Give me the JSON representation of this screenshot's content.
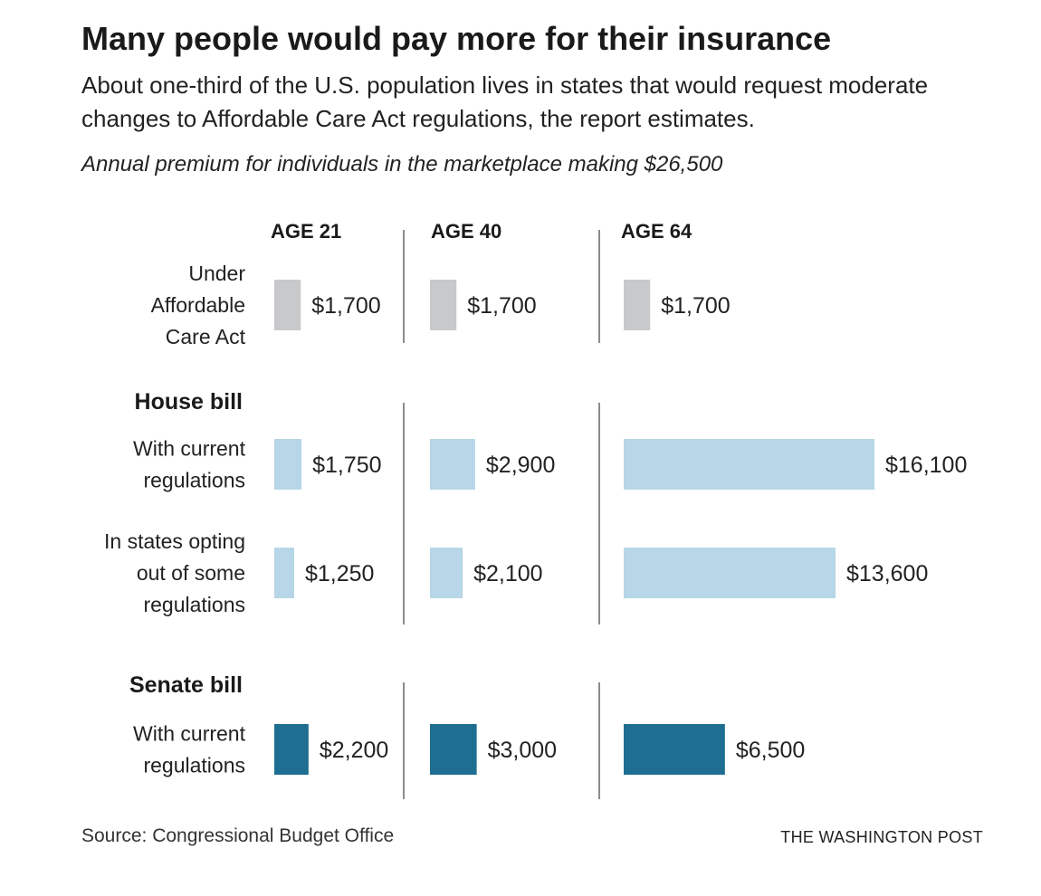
{
  "header": {
    "title": "Many people would pay more for their insurance",
    "subtitle": "About one-third of the U.S. population lives in states that would request moderate changes to Affordable Care Act regulations, the report estimates.",
    "note": "Annual premium for individuals in the marketplace making $26,500"
  },
  "footer": {
    "source": "Source: Congressional Budget Office",
    "credit": "THE WASHINGTON POST"
  },
  "colors": {
    "aca": "#c8c9cb",
    "house": "#b7d6e7",
    "senate": "#1e6e91"
  },
  "chart_data": {
    "type": "bar",
    "orientation": "horizontal",
    "title": "Many people would pay more for their insurance",
    "xlabel": "Annual premium ($)",
    "ylabel": "",
    "columns": [
      "AGE 21",
      "AGE 40",
      "AGE 64"
    ],
    "groups": [
      {
        "id": "aca",
        "label": "",
        "color_key": "aca",
        "rows": [
          {
            "label_lines": [
              "Under",
              "Affordable",
              "Care Act"
            ],
            "values": [
              1700,
              1700,
              1700
            ],
            "value_labels": [
              "$1,700",
              "$1,700",
              "$1,700"
            ]
          }
        ]
      },
      {
        "id": "house",
        "label": "House bill",
        "color_key": "house",
        "rows": [
          {
            "label_lines": [
              "With current",
              "regulations"
            ],
            "values": [
              1750,
              2900,
              16100
            ],
            "value_labels": [
              "$1,750",
              "$2,900",
              "$16,100"
            ]
          },
          {
            "label_lines": [
              "In states opting",
              "out of some",
              "regulations"
            ],
            "values": [
              1250,
              2100,
              13600
            ],
            "value_labels": [
              "$1,250",
              "$2,100",
              "$13,600"
            ]
          }
        ]
      },
      {
        "id": "senate",
        "label": "Senate bill",
        "color_key": "senate",
        "rows": [
          {
            "label_lines": [
              "With current",
              "regulations"
            ],
            "values": [
              2200,
              3000,
              6500
            ],
            "value_labels": [
              "$2,200",
              "$3,000",
              "$6,500"
            ]
          }
        ]
      }
    ],
    "xlim": [
      0,
      16100
    ],
    "grid": false,
    "legend": "none"
  }
}
